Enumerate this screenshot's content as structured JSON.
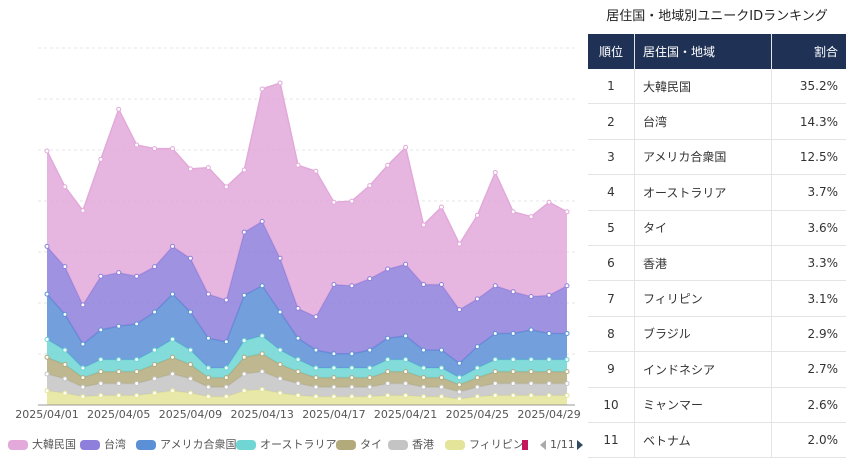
{
  "chart_data": {
    "type": "stacked_area",
    "categories": [
      "2025/04/01",
      null,
      null,
      null,
      "2025/04/05",
      null,
      null,
      null,
      "2025/04/09",
      null,
      null,
      null,
      "2025/04/13",
      null,
      null,
      null,
      "2025/04/17",
      null,
      null,
      null,
      "2025/04/21",
      null,
      null,
      null,
      "2025/04/25",
      null,
      null,
      null,
      "2025/04/29",
      null
    ],
    "series": [
      {
        "name": "大韓民国",
        "color": "#e2a9da",
        "values": [
          80,
          67,
          79,
          98,
          137,
          110,
          99,
          82,
          75,
          106,
          95,
          52,
          111,
          147,
          120,
          122,
          69,
          71,
          78,
          87,
          98,
          50,
          65,
          55,
          70,
          95,
          67,
          67,
          78,
          62
        ]
      },
      {
        "name": "台湾",
        "color": "#8e7fdc",
        "values": [
          40,
          40,
          33,
          45,
          45,
          40,
          38,
          40,
          45,
          37,
          35,
          53,
          54,
          45,
          25,
          28,
          58,
          57,
          60,
          58,
          60,
          55,
          55,
          45,
          40,
          40,
          35,
          28,
          32,
          40
        ]
      },
      {
        "name": "アメリカ合衆国",
        "color": "#5b8fd6",
        "values": [
          38,
          30,
          20,
          25,
          28,
          30,
          32,
          38,
          32,
          25,
          22,
          38,
          42,
          32,
          18,
          15,
          12,
          12,
          15,
          18,
          20,
          15,
          15,
          12,
          18,
          22,
          22,
          25,
          22,
          22
        ]
      },
      {
        "name": "オーストラリア",
        "color": "#6fd6d3",
        "values": [
          15,
          12,
          8,
          10,
          10,
          10,
          12,
          15,
          12,
          8,
          8,
          14,
          15,
          12,
          10,
          8,
          8,
          8,
          8,
          10,
          10,
          8,
          8,
          6,
          8,
          10,
          10,
          10,
          10,
          10
        ]
      },
      {
        "name": "タイ",
        "color": "#b3aa7c",
        "values": [
          14,
          12,
          8,
          10,
          10,
          10,
          12,
          14,
          12,
          8,
          8,
          14,
          15,
          12,
          10,
          8,
          8,
          8,
          8,
          10,
          10,
          8,
          8,
          6,
          8,
          10,
          10,
          10,
          10,
          10
        ]
      },
      {
        "name": "香港",
        "color": "#c4c4c4",
        "values": [
          14,
          12,
          8,
          10,
          10,
          10,
          12,
          14,
          12,
          8,
          8,
          14,
          15,
          12,
          10,
          8,
          8,
          8,
          8,
          10,
          10,
          8,
          8,
          6,
          8,
          10,
          10,
          10,
          10,
          10
        ]
      },
      {
        "name": "フィリピン",
        "color": "#e4e49a",
        "values": [
          12,
          10,
          7,
          8,
          8,
          8,
          10,
          12,
          10,
          7,
          7,
          12,
          13,
          10,
          8,
          7,
          7,
          7,
          7,
          8,
          8,
          7,
          7,
          5,
          7,
          8,
          8,
          8,
          8,
          8
        ]
      }
    ],
    "legend_page": "1/11"
  },
  "table": {
    "title": "居住国・地域別ユニークIDランキング",
    "header": [
      "順位",
      "居住国・地域",
      "割合"
    ],
    "rows": [
      [
        "1",
        "大韓民国",
        "35.2%"
      ],
      [
        "2",
        "台湾",
        "14.3%"
      ],
      [
        "3",
        "アメリカ合衆国",
        "12.5%"
      ],
      [
        "4",
        "オーストラリア",
        "3.7%"
      ],
      [
        "5",
        "タイ",
        "3.6%"
      ],
      [
        "6",
        "香港",
        "3.3%"
      ],
      [
        "7",
        "フィリピン",
        "3.1%"
      ],
      [
        "8",
        "ブラジル",
        "2.9%"
      ],
      [
        "9",
        "インドネシア",
        "2.7%"
      ],
      [
        "10",
        "ミャンマー",
        "2.6%"
      ],
      [
        "11",
        "ベトナム",
        "2.0%"
      ]
    ]
  }
}
